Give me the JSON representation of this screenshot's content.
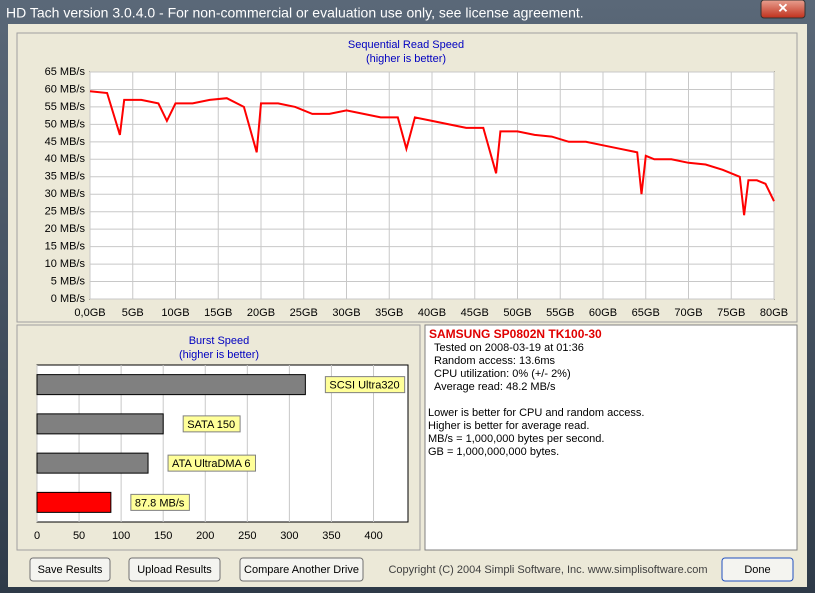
{
  "window": {
    "title": "HD Tach version 3.0.4.0  - For non-commercial or evaluation use only, see license agreement."
  },
  "chart_data": [
    {
      "type": "line",
      "title": "Sequential Read Speed",
      "subtitle": "(higher is better)",
      "color": "#ff0000",
      "grid": true,
      "x": [
        0,
        2,
        3.5,
        4,
        6,
        8,
        9,
        10,
        12,
        14,
        16,
        18,
        19.5,
        20,
        22,
        24,
        26,
        28,
        30,
        32,
        34,
        36,
        37,
        38,
        40,
        42,
        44,
        46,
        47.5,
        48,
        50,
        52,
        54,
        56,
        58,
        60,
        62,
        64,
        64.5,
        65,
        66,
        68,
        70,
        72,
        74,
        76,
        76.5,
        77,
        78,
        79,
        80
      ],
      "values": [
        59.5,
        59,
        47,
        57,
        57,
        56,
        51,
        56,
        56,
        57,
        57.5,
        55,
        42,
        56,
        56,
        55,
        53,
        53,
        54,
        53,
        52,
        52,
        43,
        52,
        51,
        50,
        49,
        49,
        36,
        48,
        48,
        47,
        46.5,
        45,
        45,
        44,
        43,
        42,
        30,
        41,
        40,
        40,
        39,
        38.5,
        37,
        35,
        24,
        34,
        34,
        33,
        28
      ],
      "xlim": [
        0,
        80
      ],
      "ylim": [
        0,
        65
      ],
      "xticks": [
        {
          "value": 0,
          "label": "0,0GB"
        },
        {
          "value": 5,
          "label": "5GB"
        },
        {
          "value": 10,
          "label": "10GB"
        },
        {
          "value": 15,
          "label": "15GB"
        },
        {
          "value": 20,
          "label": "20GB"
        },
        {
          "value": 25,
          "label": "25GB"
        },
        {
          "value": 30,
          "label": "30GB"
        },
        {
          "value": 35,
          "label": "35GB"
        },
        {
          "value": 40,
          "label": "40GB"
        },
        {
          "value": 45,
          "label": "45GB"
        },
        {
          "value": 50,
          "label": "50GB"
        },
        {
          "value": 55,
          "label": "55GB"
        },
        {
          "value": 60,
          "label": "60GB"
        },
        {
          "value": 65,
          "label": "65GB"
        },
        {
          "value": 70,
          "label": "70GB"
        },
        {
          "value": 75,
          "label": "75GB"
        },
        {
          "value": 80,
          "label": "80GB"
        }
      ],
      "yticks": [
        {
          "value": 0,
          "label": "0 MB/s"
        },
        {
          "value": 5,
          "label": "5 MB/s"
        },
        {
          "value": 10,
          "label": "10 MB/s"
        },
        {
          "value": 15,
          "label": "15 MB/s"
        },
        {
          "value": 20,
          "label": "20 MB/s"
        },
        {
          "value": 25,
          "label": "25 MB/s"
        },
        {
          "value": 30,
          "label": "30 MB/s"
        },
        {
          "value": 35,
          "label": "35 MB/s"
        },
        {
          "value": 40,
          "label": "40 MB/s"
        },
        {
          "value": 45,
          "label": "45 MB/s"
        },
        {
          "value": 50,
          "label": "50 MB/s"
        },
        {
          "value": 55,
          "label": "55 MB/s"
        },
        {
          "value": 60,
          "label": "60 MB/s"
        },
        {
          "value": 65,
          "label": "65 MB/s"
        }
      ]
    },
    {
      "type": "barh",
      "title": "Burst Speed",
      "subtitle": "(higher is better)",
      "grid": true,
      "categories": [
        "SCSI Ultra320",
        "SATA 150",
        "ATA UltraDMA 6",
        null
      ],
      "values": [
        319,
        150,
        132,
        87.8
      ],
      "value_labels": [
        null,
        null,
        null,
        "87.8 MB/s"
      ],
      "colors": [
        "#808080",
        "#808080",
        "#808080",
        "#ff0000"
      ],
      "xlim": [
        0,
        441
      ],
      "xticks": [
        0,
        50,
        100,
        150,
        200,
        250,
        300,
        350,
        400
      ]
    }
  ],
  "info": {
    "drive": "SAMSUNG SP0802N TK100-30",
    "lines": [
      "Tested on 2008-03-19 at 01:36",
      "Random access: 13.6ms",
      "CPU utilization: 0% (+/- 2%)",
      "Average read: 48.2 MB/s"
    ],
    "notes": [
      "Lower is better for CPU and random access.",
      "Higher is better for average read.",
      "MB/s = 1,000,000 bytes per second.",
      "GB = 1,000,000,000 bytes."
    ]
  },
  "buttons": [
    "Save Results",
    "Upload Results",
    "Compare Another Drive",
    "Done"
  ],
  "copyright": "Copyright (C) 2004 Simpli Software, Inc. www.simplisoftware.com"
}
